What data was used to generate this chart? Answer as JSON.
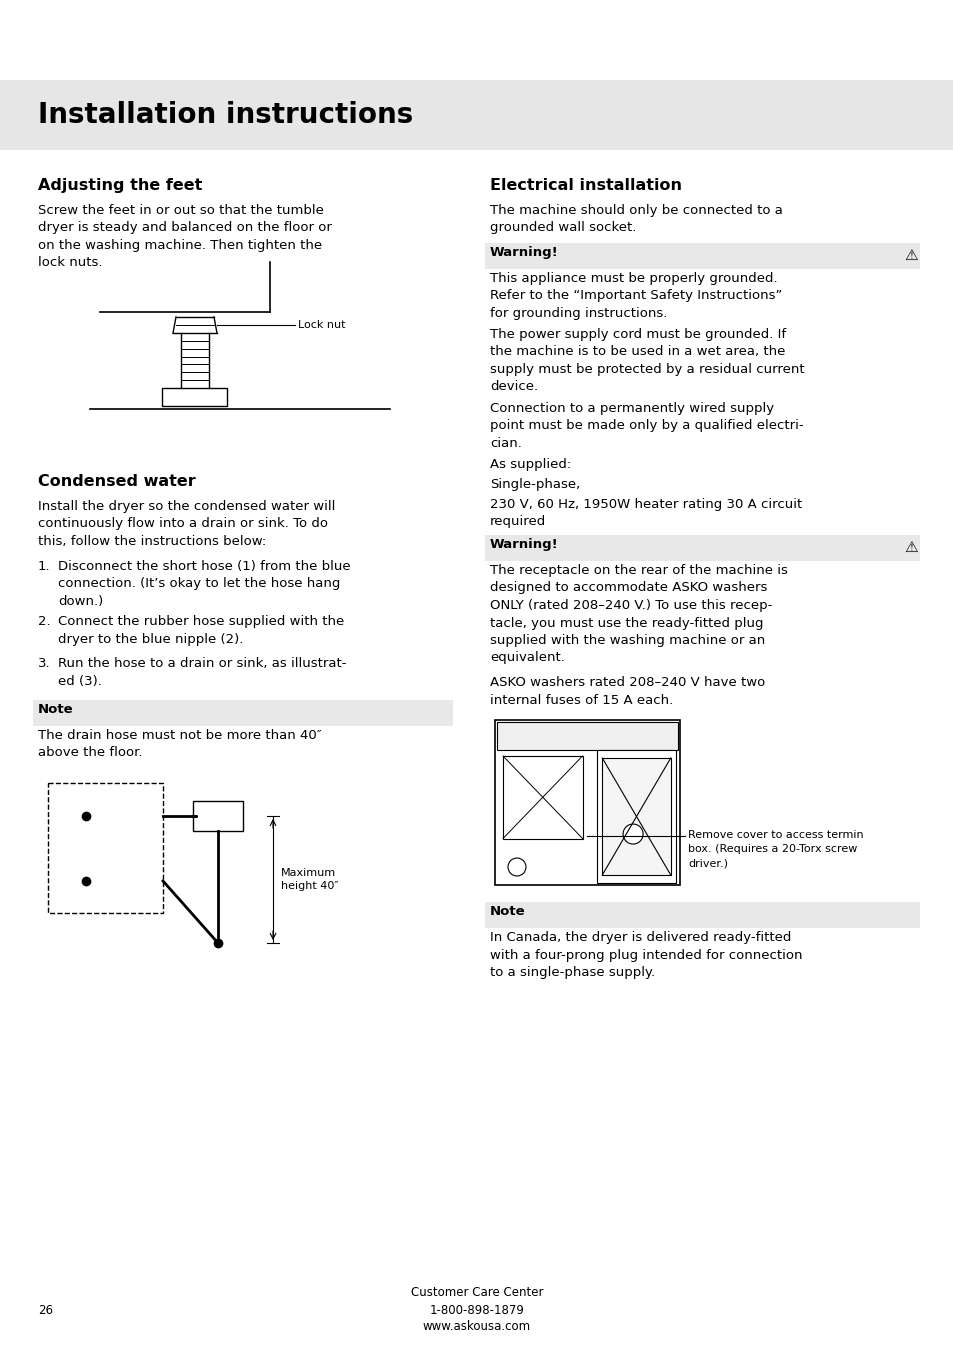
{
  "page_bg": "#ffffff",
  "header_bg": "#e6e6e6",
  "header_text": "Installation instructions",
  "header_font_size": 20,
  "warning_bg": "#e8e8e8",
  "note_bg": "#e8e8e8",
  "sections": {
    "adjusting_feet": {
      "title": "Adjusting the feet",
      "body": "Screw the feet in or out so that the tumble\ndryer is steady and balanced on the floor or\non the washing machine. Then tighten the\nlock nuts.",
      "label": "Lock nut"
    },
    "condensed_water": {
      "title": "Condensed water",
      "body": "Install the dryer so the condensed water will\ncontinuously flow into a drain or sink. To do\nthis, follow the instructions below:",
      "steps": [
        "Disconnect the short hose (1) from the blue\nconnection. (It’s okay to let the hose hang\ndown.)",
        "Connect the rubber hose supplied with the\ndryer to the blue nipple (2).",
        "Run the hose to a drain or sink, as illustrat-\ned (3)."
      ],
      "note_title": "Note",
      "note_body": "The drain hose must not be more than 40″\nabove the floor.",
      "diagram_label": "Maximum\nheight 40″"
    },
    "electrical": {
      "title": "Electrical installation",
      "body1": "The machine should only be connected to a\ngrounded wall socket.",
      "warning1_title": "Warning!",
      "warning1_body": "This appliance must be properly grounded.\nRefer to the “Important Safety Instructions”\nfor grounding instructions.",
      "body2": "The power supply cord must be grounded. If\nthe machine is to be used in a wet area, the\nsupply must be protected by a residual current\ndevice.",
      "body3": "Connection to a permanently wired supply\npoint must be made only by a qualified electri-\ncian.",
      "body4": "As supplied:",
      "body5": "Single-phase,",
      "body6": "230 V, 60 Hz, 1950W heater rating 30 A circuit\nrequired",
      "warning2_title": "Warning!",
      "warning2_body": "The receptacle on the rear of the machine is\ndesigned to accommodate ASKO washers\nONLY (rated 208–240 V.) To use this recep-\ntacle, you must use the ready-fitted plug\nsupplied with the washing machine or an\nequivalent.",
      "body7": "ASKO washers rated 208–240 V have two\ninternal fuses of 15 A each.",
      "diagram_label": "Remove cover to access termin\nbox. (Requires a 20-Torx screw\ndriver.)",
      "note2_title": "Note",
      "note2_body": "In Canada, the dryer is delivered ready-fitted\nwith a four-prong plug intended for connection\nto a single-phase supply."
    }
  },
  "footer": {
    "page_num": "26",
    "center_text": "Customer Care Center\n1-800-898-1879\nwww.askousa.com"
  }
}
